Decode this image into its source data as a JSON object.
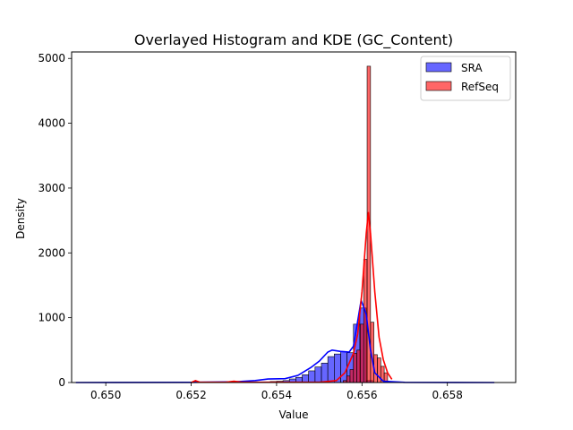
{
  "chart_data": {
    "type": "histogram",
    "title": "Overlayed Histogram and KDE (GC_Content)",
    "xlabel": "Value",
    "ylabel": "Density",
    "xlim": [
      0.6492,
      0.6596
    ],
    "ylim": [
      0,
      5100
    ],
    "x_ticks": [
      0.65,
      0.652,
      0.654,
      0.656,
      0.658
    ],
    "x_tick_labels": [
      "0.650",
      "0.652",
      "0.654",
      "0.656",
      "0.658"
    ],
    "y_ticks": [
      0,
      1000,
      2000,
      3000,
      4000,
      5000
    ],
    "y_tick_labels": [
      "0",
      "1000",
      "2000",
      "3000",
      "4000",
      "5000"
    ],
    "grid": false,
    "legend_position": "top-right",
    "series": [
      {
        "name": "SRA",
        "color": "#0000ff",
        "bin_width": 0.00015,
        "bins": [
          [
            0.6537,
            10
          ],
          [
            0.65385,
            15
          ],
          [
            0.654,
            20
          ],
          [
            0.65415,
            30
          ],
          [
            0.6543,
            55
          ],
          [
            0.65445,
            80
          ],
          [
            0.6546,
            120
          ],
          [
            0.65475,
            180
          ],
          [
            0.6549,
            240
          ],
          [
            0.65505,
            300
          ],
          [
            0.6552,
            400
          ],
          [
            0.65535,
            440
          ],
          [
            0.6555,
            480
          ],
          [
            0.65565,
            460
          ],
          [
            0.6558,
            900
          ],
          [
            0.65595,
            1150
          ],
          [
            0.6561,
            30
          ]
        ],
        "kde": [
          [
            0.6493,
            0
          ],
          [
            0.652,
            2
          ],
          [
            0.653,
            10
          ],
          [
            0.6535,
            30
          ],
          [
            0.6538,
            55
          ],
          [
            0.6542,
            60
          ],
          [
            0.6545,
            110
          ],
          [
            0.6548,
            230
          ],
          [
            0.655,
            330
          ],
          [
            0.6552,
            470
          ],
          [
            0.6553,
            500
          ],
          [
            0.6555,
            480
          ],
          [
            0.6557,
            470
          ],
          [
            0.6558,
            560
          ],
          [
            0.6559,
            950
          ],
          [
            0.65598,
            1270
          ],
          [
            0.6561,
            1050
          ],
          [
            0.6562,
            500
          ],
          [
            0.6563,
            150
          ],
          [
            0.6565,
            20
          ],
          [
            0.657,
            2
          ],
          [
            0.6591,
            0
          ]
        ]
      },
      {
        "name": "RefSeq",
        "color": "#ff0000",
        "bin_width": 8e-05,
        "bins": [
          [
            0.65207,
            20
          ],
          [
            0.65295,
            10
          ],
          [
            0.6542,
            5
          ],
          [
            0.65556,
            30
          ],
          [
            0.65564,
            100
          ],
          [
            0.65572,
            200
          ],
          [
            0.6558,
            450
          ],
          [
            0.65588,
            500
          ],
          [
            0.65596,
            900
          ],
          [
            0.65604,
            1900
          ],
          [
            0.65612,
            4880
          ],
          [
            0.6562,
            930
          ],
          [
            0.65628,
            430
          ],
          [
            0.65636,
            380
          ],
          [
            0.65644,
            250
          ],
          [
            0.65652,
            150
          ]
        ],
        "kde": [
          [
            0.652,
            0
          ],
          [
            0.6521,
            30
          ],
          [
            0.6522,
            5
          ],
          [
            0.6528,
            5
          ],
          [
            0.653,
            20
          ],
          [
            0.6532,
            5
          ],
          [
            0.655,
            5
          ],
          [
            0.6554,
            30
          ],
          [
            0.6556,
            150
          ],
          [
            0.6558,
            450
          ],
          [
            0.6559,
            750
          ],
          [
            0.656,
            1400
          ],
          [
            0.6561,
            2300
          ],
          [
            0.65615,
            2630
          ],
          [
            0.6562,
            2300
          ],
          [
            0.6563,
            1400
          ],
          [
            0.6564,
            700
          ],
          [
            0.6565,
            350
          ],
          [
            0.6566,
            150
          ],
          [
            0.6567,
            50
          ]
        ]
      }
    ]
  }
}
